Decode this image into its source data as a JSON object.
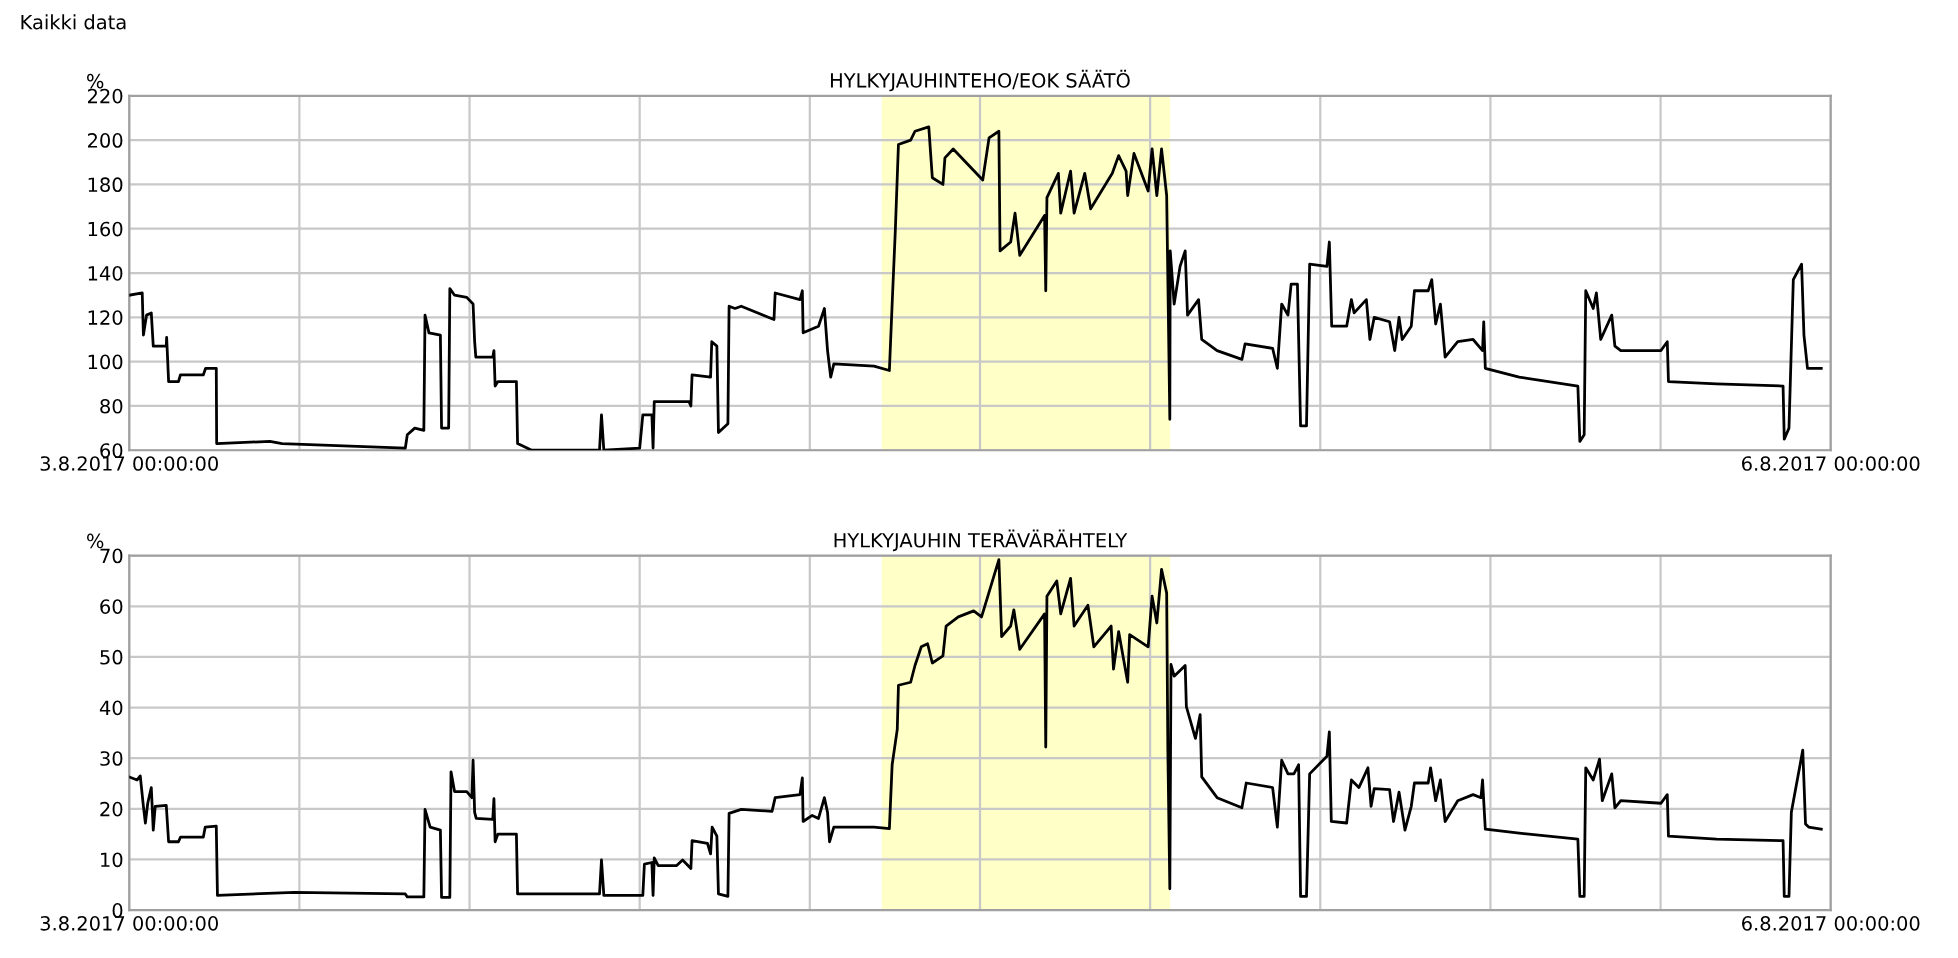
{
  "chart_data": [
    {
      "type": "line",
      "title": "HYLKYJAUHINTEHO/EOK SÄÄTÖ",
      "ylabel": "%",
      "annotations": [
        "Kaikki data"
      ],
      "xlim": [
        "2017-08-03T00:00",
        "2017-08-06T00:00"
      ],
      "xticks": [
        {
          "value": "2017-08-03T00:00",
          "label": "3.8.2017 00:00:00"
        },
        {
          "value": "2017-08-03T07:12",
          "label": null
        },
        {
          "value": "2017-08-03T14:24",
          "label": null
        },
        {
          "value": "2017-08-03T21:36",
          "label": null
        },
        {
          "value": "2017-08-04T04:48",
          "label": null
        },
        {
          "value": "2017-08-04T12:00",
          "label": null
        },
        {
          "value": "2017-08-04T19:12",
          "label": null
        },
        {
          "value": "2017-08-05T02:24",
          "label": null
        },
        {
          "value": "2017-08-05T09:36",
          "label": null
        },
        {
          "value": "2017-08-05T16:48",
          "label": null
        },
        {
          "value": "2017-08-06T00:00",
          "label": "6.8.2017 00:00:00"
        }
      ],
      "ylim": [
        60,
        220
      ],
      "yticks": [
        60,
        80,
        100,
        120,
        140,
        160,
        180,
        200,
        220
      ],
      "grid": true,
      "marker": "none",
      "line_style": "solid",
      "bands": [
        {
          "axis": "x",
          "from": "2017-08-04T07:51",
          "to": "2017-08-04T20:03",
          "color": "#ffffc8"
        }
      ],
      "series": [
        {
          "color": "#000000",
          "x": [
            "2017-08-03T00:00",
            "2017-08-03T00:33",
            "2017-08-03T00:36",
            "2017-08-03T00:44",
            "2017-08-03T00:56",
            "2017-08-03T01:01",
            "2017-08-03T01:34",
            "2017-08-03T01:35",
            "2017-08-03T01:40",
            "2017-08-03T02:05",
            "2017-08-03T02:10",
            "2017-08-03T03:08",
            "2017-08-03T03:14",
            "2017-08-03T03:41",
            "2017-08-03T03:42",
            "2017-08-03T05:57",
            "2017-08-03T06:28",
            "2017-08-03T11:41",
            "2017-08-03T11:46",
            "2017-08-03T12:05",
            "2017-08-03T12:28",
            "2017-08-03T12:31",
            "2017-08-03T12:41",
            "2017-08-03T13:10",
            "2017-08-03T13:13",
            "2017-08-03T13:31",
            "2017-08-03T13:34",
            "2017-08-03T13:46",
            "2017-08-03T14:17",
            "2017-08-03T14:33",
            "2017-08-03T14:37",
            "2017-08-03T14:40",
            "2017-08-03T15:23",
            "2017-08-03T15:26",
            "2017-08-03T15:29",
            "2017-08-03T15:36",
            "2017-08-03T16:23",
            "2017-08-03T16:26",
            "2017-08-03T17:02",
            "2017-08-03T19:54",
            "2017-08-03T19:59",
            "2017-08-03T20:05",
            "2017-08-03T21:36",
            "2017-08-03T21:44",
            "2017-08-03T22:07",
            "2017-08-03T22:10",
            "2017-08-03T22:13",
            "2017-08-03T23:41",
            "2017-08-03T23:46",
            "2017-08-03T23:49",
            "2017-08-04T00:36",
            "2017-08-04T00:39",
            "2017-08-04T00:52",
            "2017-08-04T00:56",
            "2017-08-04T01:20",
            "2017-08-04T01:23",
            "2017-08-04T01:38",
            "2017-08-04T01:54",
            "2017-08-04T03:17",
            "2017-08-04T03:20",
            "2017-08-04T04:23",
            "2017-08-04T04:29",
            "2017-08-04T04:31",
            "2017-08-04T05:10",
            "2017-08-04T05:25",
            "2017-08-04T05:33",
            "2017-08-04T05:41",
            "2017-08-04T05:49",
            "2017-08-04T07:31",
            "2017-08-04T08:10",
            "2017-08-04T08:17",
            "2017-08-04T08:25",
            "2017-08-04T08:33",
            "2017-08-04T09:04",
            "2017-08-04T09:15",
            "2017-08-04T09:50",
            "2017-08-04T09:59",
            "2017-08-04T10:26",
            "2017-08-04T10:31",
            "2017-08-04T10:52",
            "2017-08-04T12:07",
            "2017-08-04T12:23",
            "2017-08-04T12:48",
            "2017-08-04T12:51",
            "2017-08-04T13:18",
            "2017-08-04T13:29",
            "2017-08-04T13:41",
            "2017-08-04T14:44",
            "2017-08-04T14:47",
            "2017-08-04T14:50",
            "2017-08-04T15:19",
            "2017-08-04T15:25",
            "2017-08-04T15:50",
            "2017-08-04T15:59",
            "2017-08-04T16:26",
            "2017-08-04T16:41",
            "2017-08-04T17:36",
            "2017-08-04T17:52",
            "2017-08-04T18:11",
            "2017-08-04T18:15",
            "2017-08-04T18:31",
            "2017-08-04T19:07",
            "2017-08-04T19:17",
            "2017-08-04T19:29",
            "2017-08-04T19:41",
            "2017-08-04T19:54",
            "2017-08-04T20:02",
            "2017-08-04T20:03",
            "2017-08-04T20:13",
            "2017-08-04T20:28",
            "2017-08-04T20:41",
            "2017-08-04T20:47",
            "2017-08-04T21:15",
            "2017-08-04T21:23",
            "2017-08-04T22:02",
            "2017-08-04T23:05",
            "2017-08-04T23:13",
            "2017-08-05T00:23",
            "2017-08-05T00:35",
            "2017-08-05T00:46",
            "2017-08-05T01:02",
            "2017-08-05T01:10",
            "2017-08-05T01:26",
            "2017-08-05T01:34",
            "2017-08-05T01:49",
            "2017-08-05T01:57",
            "2017-08-05T02:41",
            "2017-08-05T02:47",
            "2017-08-05T02:53",
            "2017-08-05T03:31",
            "2017-08-05T03:43",
            "2017-08-05T03:50",
            "2017-08-05T04:21",
            "2017-08-05T04:30",
            "2017-08-05T04:41",
            "2017-08-05T05:20",
            "2017-08-05T05:33",
            "2017-08-05T05:44",
            "2017-08-05T05:52",
            "2017-08-05T06:15",
            "2017-08-05T06:23",
            "2017-08-05T06:58",
            "2017-08-05T07:07",
            "2017-08-05T07:17",
            "2017-08-05T07:29",
            "2017-08-05T07:41",
            "2017-08-05T08:13",
            "2017-08-05T08:52",
            "2017-08-05T09:16",
            "2017-08-05T09:19",
            "2017-08-05T09:23",
            "2017-08-05T10:49",
            "2017-08-05T13:18",
            "2017-08-05T13:23",
            "2017-08-05T13:34",
            "2017-08-05T13:38",
            "2017-08-05T13:57",
            "2017-08-05T14:05",
            "2017-08-05T14:16",
            "2017-08-05T14:44",
            "2017-08-05T14:52",
            "2017-08-05T15:07",
            "2017-08-05T16:49",
            "2017-08-05T17:05",
            "2017-08-05T17:08",
            "2017-08-05T19:10",
            "2017-08-05T21:59",
            "2017-08-05T22:02",
            "2017-08-05T22:14",
            "2017-08-05T22:25",
            "2017-08-05T22:46",
            "2017-08-05T22:52",
            "2017-08-05T23:01",
            "2017-08-05T23:36"
          ],
          "values": [
            130,
            131,
            112,
            121,
            122,
            107,
            107,
            111,
            91,
            91,
            94,
            94,
            97,
            97,
            63,
            64,
            63,
            61,
            67,
            70,
            69,
            121,
            113,
            112,
            70,
            70,
            133,
            130,
            129,
            126,
            109,
            102,
            102,
            105,
            89,
            91,
            91,
            63,
            60,
            60,
            76,
            60,
            61,
            76,
            76,
            61,
            82,
            82,
            80,
            94,
            93,
            109,
            107,
            68,
            72,
            125,
            124,
            125,
            119,
            131,
            128,
            132,
            113,
            116,
            124,
            105,
            93,
            99,
            98,
            96,
            126,
            159,
            198,
            200,
            204,
            206,
            183,
            180,
            192,
            196,
            182,
            201,
            204,
            150,
            154,
            167,
            148,
            166,
            132,
            174,
            185,
            167,
            186,
            167,
            185,
            169,
            185,
            193,
            186,
            175,
            194,
            177,
            196,
            175,
            196,
            175,
            74,
            150,
            126,
            143,
            150,
            121,
            128,
            110,
            105,
            101,
            108,
            106,
            97,
            126,
            121,
            135,
            135,
            71,
            71,
            144,
            143,
            154,
            116,
            116,
            128,
            122,
            128,
            110,
            120,
            118,
            105,
            120,
            110,
            116,
            132,
            132,
            137,
            117,
            126,
            102,
            109,
            110,
            105,
            118,
            97,
            93,
            89,
            64,
            67,
            132,
            124,
            131,
            110,
            121,
            107,
            105,
            105,
            109,
            91,
            90,
            89,
            65,
            70,
            137,
            144,
            112,
            97,
            97
          ]
        }
      ]
    },
    {
      "type": "line",
      "title": "HYLKYJAUHIN TERÄVÄRÄHTELY",
      "ylabel": "%",
      "xlim": [
        "2017-08-03T00:00",
        "2017-08-06T00:00"
      ],
      "xticks": [
        {
          "value": "2017-08-03T00:00",
          "label": "3.8.2017 00:00:00"
        },
        {
          "value": "2017-08-03T07:12",
          "label": null
        },
        {
          "value": "2017-08-03T14:24",
          "label": null
        },
        {
          "value": "2017-08-03T21:36",
          "label": null
        },
        {
          "value": "2017-08-04T04:48",
          "label": null
        },
        {
          "value": "2017-08-04T12:00",
          "label": null
        },
        {
          "value": "2017-08-04T19:12",
          "label": null
        },
        {
          "value": "2017-08-05T02:24",
          "label": null
        },
        {
          "value": "2017-08-05T09:36",
          "label": null
        },
        {
          "value": "2017-08-05T16:48",
          "label": null
        },
        {
          "value": "2017-08-06T00:00",
          "label": "6.8.2017 00:00:00"
        }
      ],
      "ylim": [
        0,
        70
      ],
      "yticks": [
        0,
        10,
        20,
        30,
        40,
        50,
        60,
        70
      ],
      "grid": true,
      "marker": "none",
      "line_style": "solid",
      "bands": [
        {
          "axis": "x",
          "from": "2017-08-04T07:51",
          "to": "2017-08-04T20:03",
          "color": "#ffffc8"
        }
      ],
      "series": [
        {
          "color": "#000000",
          "x": [
            "2017-08-03T00:00",
            "2017-08-03T00:20",
            "2017-08-03T00:28",
            "2017-08-03T00:36",
            "2017-08-03T00:41",
            "2017-08-03T00:47",
            "2017-08-03T00:56",
            "2017-08-03T01:01",
            "2017-08-03T01:06",
            "2017-08-03T01:34",
            "2017-08-03T01:40",
            "2017-08-03T02:05",
            "2017-08-03T02:10",
            "2017-08-03T03:08",
            "2017-08-03T03:13",
            "2017-08-03T03:41",
            "2017-08-03T03:44",
            "2017-08-03T06:59",
            "2017-08-03T11:41",
            "2017-08-03T11:46",
            "2017-08-03T12:28",
            "2017-08-03T12:31",
            "2017-08-03T12:44",
            "2017-08-03T13:10",
            "2017-08-03T13:13",
            "2017-08-03T13:34",
            "2017-08-03T13:37",
            "2017-08-03T13:46",
            "2017-08-03T14:17",
            "2017-08-03T14:30",
            "2017-08-03T14:33",
            "2017-08-03T14:37",
            "2017-08-03T14:41",
            "2017-08-03T15:23",
            "2017-08-03T15:26",
            "2017-08-03T15:29",
            "2017-08-03T15:36",
            "2017-08-03T16:23",
            "2017-08-03T16:26",
            "2017-08-03T19:54",
            "2017-08-03T19:59",
            "2017-08-03T20:05",
            "2017-08-03T21:44",
            "2017-08-03T21:48",
            "2017-08-03T22:07",
            "2017-08-03T22:10",
            "2017-08-03T22:13",
            "2017-08-03T22:23",
            "2017-08-03T23:10",
            "2017-08-03T23:25",
            "2017-08-03T23:46",
            "2017-08-03T23:49",
            "2017-08-04T00:28",
            "2017-08-04T00:36",
            "2017-08-04T00:40",
            "2017-08-04T00:52",
            "2017-08-04T00:56",
            "2017-08-04T01:20",
            "2017-08-04T01:23",
            "2017-08-04T01:54",
            "2017-08-04T03:12",
            "2017-08-04T03:20",
            "2017-08-04T04:23",
            "2017-08-04T04:29",
            "2017-08-04T04:31",
            "2017-08-04T04:54",
            "2017-08-04T05:10",
            "2017-08-04T05:25",
            "2017-08-04T05:33",
            "2017-08-04T05:38",
            "2017-08-04T05:49",
            "2017-08-04T07:31",
            "2017-08-04T08:10",
            "2017-08-04T08:17",
            "2017-08-04T08:30",
            "2017-08-04T08:33",
            "2017-08-04T09:04",
            "2017-08-04T09:15",
            "2017-08-04T09:31",
            "2017-08-04T09:47",
            "2017-08-04T09:59",
            "2017-08-04T10:26",
            "2017-08-04T10:34",
            "2017-08-04T11:05",
            "2017-08-04T11:44",
            "2017-08-04T12:04",
            "2017-08-04T12:20",
            "2017-08-04T12:48",
            "2017-08-04T12:55",
            "2017-08-04T13:18",
            "2017-08-04T13:26",
            "2017-08-04T13:41",
            "2017-08-04T14:44",
            "2017-08-04T14:47",
            "2017-08-04T14:50",
            "2017-08-04T15:15",
            "2017-08-04T15:25",
            "2017-08-04T15:50",
            "2017-08-04T15:59",
            "2017-08-04T16:34",
            "2017-08-04T16:49",
            "2017-08-04T17:33",
            "2017-08-04T17:39",
            "2017-08-04T17:52",
            "2017-08-04T18:15",
            "2017-08-04T18:20",
            "2017-08-04T19:07",
            "2017-08-04T19:17",
            "2017-08-04T19:29",
            "2017-08-04T19:41",
            "2017-08-04T19:54",
            "2017-08-04T19:57",
            "2017-08-04T20:02",
            "2017-08-04T20:05",
            "2017-08-04T20:13",
            "2017-08-04T20:41",
            "2017-08-04T20:44",
            "2017-08-04T21:07",
            "2017-08-04T21:19",
            "2017-08-04T21:23",
            "2017-08-04T22:02",
            "2017-08-04T23:05",
            "2017-08-04T23:16",
            "2017-08-05T00:23",
            "2017-08-05T00:35",
            "2017-08-05T00:46",
            "2017-08-05T01:02",
            "2017-08-05T01:17",
            "2017-08-05T01:29",
            "2017-08-05T01:34",
            "2017-08-05T01:49",
            "2017-08-05T01:57",
            "2017-08-05T02:41",
            "2017-08-05T02:47",
            "2017-08-05T02:52",
            "2017-08-05T03:31",
            "2017-08-05T03:43",
            "2017-08-05T04:02",
            "2017-08-05T04:25",
            "2017-08-05T04:33",
            "2017-08-05T04:41",
            "2017-08-05T05:20",
            "2017-08-05T05:30",
            "2017-08-05T05:44",
            "2017-08-05T05:59",
            "2017-08-05T06:15",
            "2017-08-05T06:23",
            "2017-08-05T06:58",
            "2017-08-05T07:04",
            "2017-08-05T07:17",
            "2017-08-05T07:29",
            "2017-08-05T07:41",
            "2017-08-05T08:13",
            "2017-08-05T08:52",
            "2017-08-05T09:12",
            "2017-08-05T09:16",
            "2017-08-05T09:23",
            "2017-08-05T10:49",
            "2017-08-05T13:18",
            "2017-08-05T13:23",
            "2017-08-05T13:34",
            "2017-08-05T13:38",
            "2017-08-05T13:57",
            "2017-08-05T14:13",
            "2017-08-05T14:20",
            "2017-08-05T14:44",
            "2017-08-05T14:52",
            "2017-08-05T15:07",
            "2017-08-05T16:49",
            "2017-08-05T17:05",
            "2017-08-05T17:08",
            "2017-08-05T19:10",
            "2017-08-05T21:59",
            "2017-08-05T22:02",
            "2017-08-05T22:14",
            "2017-08-05T22:20",
            "2017-08-05T22:49",
            "2017-08-05T22:56",
            "2017-08-05T23:04",
            "2017-08-05T23:36"
          ],
          "values": [
            26.3,
            25.7,
            26.5,
            20.5,
            17.2,
            21.1,
            24.2,
            15.8,
            20.5,
            20.7,
            13.5,
            13.5,
            14.4,
            14.4,
            16.4,
            16.6,
            2.9,
            3.5,
            3.2,
            2.6,
            2.6,
            19.9,
            16.4,
            15.8,
            2.5,
            2.5,
            27.3,
            23.4,
            23.4,
            22.2,
            29.6,
            19.3,
            18.1,
            17.9,
            22,
            13.5,
            15,
            15,
            3.2,
            3.2,
            9.9,
            2.9,
            2.9,
            9.1,
            9.4,
            2.9,
            10.3,
            8.8,
            8.8,
            9.9,
            8.2,
            13.7,
            13.2,
            11.1,
            16.4,
            14.6,
            3.2,
            2.7,
            19.1,
            19.9,
            19.5,
            22.2,
            22.8,
            26.1,
            17.5,
            18.7,
            18.1,
            22.2,
            19.3,
            13.5,
            16.4,
            16.4,
            16.1,
            28.7,
            35.7,
            44.4,
            45,
            48.3,
            52,
            52.6,
            48.8,
            50.2,
            56.1,
            57.9,
            59.1,
            57.9,
            62,
            69.2,
            54,
            56.1,
            59.3,
            51.5,
            58.5,
            32.2,
            62,
            65,
            58.5,
            65.5,
            56.1,
            60.2,
            52,
            56.1,
            47.6,
            55,
            45,
            54.4,
            52,
            62,
            56.7,
            67.3,
            62.6,
            31.6,
            4.2,
            48.5,
            46.2,
            48.3,
            40.2,
            33.9,
            38.6,
            26.3,
            22.2,
            20.2,
            25.1,
            24.2,
            16.4,
            29.6,
            26.9,
            26.9,
            28.7,
            2.7,
            2.7,
            26.9,
            30.4,
            35.2,
            17.5,
            17.2,
            25.7,
            24.2,
            28.1,
            20.5,
            24,
            23.8,
            17.5,
            23.3,
            15.8,
            20.5,
            25.1,
            25.1,
            28.1,
            21.6,
            25.7,
            17.5,
            21.6,
            22.8,
            22.2,
            25.7,
            16,
            15.2,
            14,
            2.7,
            2.7,
            28.1,
            25.7,
            29.8,
            21.6,
            26.9,
            20.2,
            21.6,
            21.1,
            22.8,
            14.6,
            14,
            13.7,
            2.7,
            2.7,
            19.3,
            31.6,
            17,
            16.4,
            16
          ]
        }
      ]
    }
  ]
}
